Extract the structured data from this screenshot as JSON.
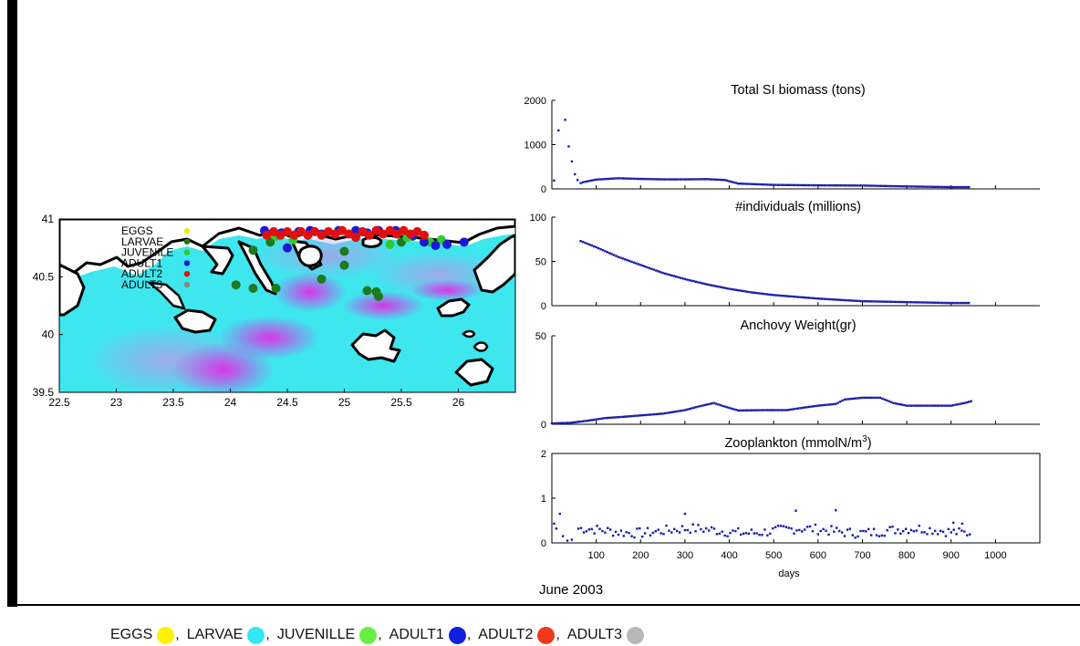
{
  "page": {
    "date_label": "June 2003"
  },
  "bottom_legend": {
    "items": [
      {
        "label": "EGGS",
        "color": "#fff200"
      },
      {
        "label": "LARVAE",
        "color": "#33e6f2"
      },
      {
        "label": "JUVENILLE",
        "color": "#66ee44"
      },
      {
        "label": "ADULT1",
        "color": "#1020dd"
      },
      {
        "label": "ADULT2",
        "color": "#f0381a"
      },
      {
        "label": "ADULT3",
        "color": "#b8b8b8"
      }
    ]
  },
  "chart_data": [
    {
      "type": "scatter",
      "panel": "map",
      "title": "",
      "xlim": [
        22.5,
        26.5
      ],
      "ylim": [
        39.5,
        41
      ],
      "xticks": [
        22.5,
        23,
        23.5,
        24,
        24.5,
        25,
        25.5,
        26
      ],
      "yticks": [
        39.5,
        40,
        40.5,
        41
      ],
      "legend": {
        "placement": "top-left",
        "entries": [
          {
            "label": "EGGS",
            "color": "#f5e800"
          },
          {
            "label": "LARVAE",
            "color": "#1d7a1d"
          },
          {
            "label": "JUVENILE",
            "color": "#2ecc2e"
          },
          {
            "label": "ADULT1",
            "color": "#1a1ad6"
          },
          {
            "label": "ADULT2",
            "color": "#e01010"
          },
          {
            "label": "ADULT3",
            "color": "#888888"
          }
        ]
      },
      "series": [
        {
          "name": "LARVAE",
          "color": "#1d7a1d",
          "points": [
            [
              24.05,
              40.43
            ],
            [
              24.2,
              40.4
            ],
            [
              24.4,
              40.4
            ],
            [
              24.2,
              40.73
            ],
            [
              24.35,
              40.8
            ],
            [
              24.8,
              40.48
            ],
            [
              25.0,
              40.72
            ],
            [
              25.0,
              40.6
            ],
            [
              25.2,
              40.38
            ],
            [
              25.28,
              40.37
            ],
            [
              25.3,
              40.33
            ],
            [
              25.5,
              40.8
            ],
            [
              25.6,
              40.85
            ]
          ]
        },
        {
          "name": "JUVENILE",
          "color": "#2ecc2e",
          "points": [
            [
              24.4,
              40.85
            ],
            [
              24.55,
              40.82
            ],
            [
              25.4,
              40.78
            ],
            [
              25.55,
              40.84
            ],
            [
              25.75,
              40.8
            ],
            [
              25.85,
              40.82
            ]
          ]
        },
        {
          "name": "ADULT1",
          "color": "#1a1ad6",
          "points": [
            [
              24.3,
              40.9
            ],
            [
              24.45,
              40.88
            ],
            [
              24.5,
              40.75
            ],
            [
              24.6,
              40.89
            ],
            [
              24.7,
              40.9
            ],
            [
              24.8,
              40.87
            ],
            [
              24.95,
              40.9
            ],
            [
              25.1,
              40.9
            ],
            [
              25.2,
              40.88
            ],
            [
              25.3,
              40.9
            ],
            [
              25.45,
              40.9
            ],
            [
              25.6,
              40.86
            ],
            [
              25.7,
              40.8
            ],
            [
              25.8,
              40.77
            ],
            [
              25.9,
              40.78
            ],
            [
              26.05,
              40.8
            ]
          ]
        },
        {
          "name": "ADULT2",
          "color": "#e01010",
          "points": [
            [
              24.32,
              40.86
            ],
            [
              24.38,
              40.89
            ],
            [
              24.44,
              40.86
            ],
            [
              24.5,
              40.89
            ],
            [
              24.56,
              40.86
            ],
            [
              24.62,
              40.89
            ],
            [
              24.68,
              40.86
            ],
            [
              24.74,
              40.89
            ],
            [
              24.8,
              40.86
            ],
            [
              24.86,
              40.89
            ],
            [
              24.92,
              40.87
            ],
            [
              24.98,
              40.9
            ],
            [
              25.04,
              40.87
            ],
            [
              25.1,
              40.84
            ],
            [
              25.16,
              40.89
            ],
            [
              25.22,
              40.86
            ],
            [
              25.28,
              40.9
            ],
            [
              25.34,
              40.87
            ],
            [
              25.4,
              40.9
            ],
            [
              25.46,
              40.87
            ],
            [
              25.52,
              40.9
            ],
            [
              25.58,
              40.87
            ],
            [
              25.64,
              40.89
            ],
            [
              25.7,
              40.86
            ]
          ]
        }
      ]
    },
    {
      "type": "scatter",
      "panel": "biomass",
      "title": "Total SI biomass (tons)",
      "xlim": [
        0,
        1100
      ],
      "ylim": [
        0,
        2000
      ],
      "yticks": [
        0,
        1000,
        2000
      ],
      "color": "#1a1aa8",
      "spikes": [
        [
          5,
          190
        ],
        [
          15,
          1320
        ],
        [
          30,
          1560
        ],
        [
          38,
          960
        ],
        [
          45,
          620
        ],
        [
          52,
          330
        ],
        [
          58,
          200
        ],
        [
          65,
          130
        ]
      ],
      "curve": [
        [
          70,
          150
        ],
        [
          100,
          210
        ],
        [
          150,
          240
        ],
        [
          200,
          225
        ],
        [
          250,
          215
        ],
        [
          300,
          215
        ],
        [
          350,
          220
        ],
        [
          390,
          200
        ],
        [
          420,
          120
        ],
        [
          500,
          90
        ],
        [
          600,
          80
        ],
        [
          700,
          75
        ],
        [
          800,
          55
        ],
        [
          900,
          40
        ],
        [
          940,
          40
        ]
      ]
    },
    {
      "type": "scatter",
      "panel": "individuals",
      "title": "#individuals (millions)",
      "xlim": [
        0,
        1100
      ],
      "ylim": [
        0,
        100
      ],
      "yticks": [
        0,
        50,
        100
      ],
      "color": "#1a1aa8",
      "curve": [
        [
          65,
          73
        ],
        [
          100,
          66
        ],
        [
          150,
          55
        ],
        [
          200,
          46
        ],
        [
          250,
          37
        ],
        [
          300,
          30
        ],
        [
          350,
          24
        ],
        [
          400,
          19
        ],
        [
          450,
          15
        ],
        [
          500,
          12
        ],
        [
          550,
          10
        ],
        [
          600,
          8
        ],
        [
          650,
          6.5
        ],
        [
          700,
          5
        ],
        [
          750,
          4.5
        ],
        [
          800,
          4
        ],
        [
          850,
          3.5
        ],
        [
          900,
          3
        ],
        [
          940,
          3
        ]
      ]
    },
    {
      "type": "scatter",
      "panel": "weight",
      "title": "Anchovy Weight(gr)",
      "xlim": [
        0,
        1100
      ],
      "ylim": [
        0,
        50
      ],
      "yticks": [
        0,
        50
      ],
      "color": "#1a1aa8",
      "curve": [
        [
          0,
          0.5
        ],
        [
          40,
          0.8
        ],
        [
          80,
          2
        ],
        [
          120,
          3.5
        ],
        [
          160,
          4.2
        ],
        [
          200,
          5
        ],
        [
          250,
          6
        ],
        [
          300,
          8
        ],
        [
          330,
          10
        ],
        [
          365,
          12
        ],
        [
          390,
          10
        ],
        [
          420,
          7.8
        ],
        [
          480,
          8
        ],
        [
          530,
          8
        ],
        [
          570,
          9.5
        ],
        [
          600,
          10.5
        ],
        [
          640,
          11.5
        ],
        [
          660,
          14
        ],
        [
          700,
          15
        ],
        [
          740,
          15
        ],
        [
          770,
          12
        ],
        [
          800,
          10.5
        ],
        [
          850,
          10.5
        ],
        [
          900,
          10.5
        ],
        [
          930,
          12
        ],
        [
          945,
          13
        ]
      ]
    },
    {
      "type": "scatter",
      "panel": "zooplankton",
      "title": "Zooplankton (mmolN/m",
      "title_sup": "3",
      "title_end": ")",
      "xlabel": "days",
      "xlim": [
        0,
        1100
      ],
      "ylim": [
        0,
        2
      ],
      "xticks": [
        100,
        200,
        300,
        400,
        500,
        600,
        700,
        800,
        900,
        1000
      ],
      "yticks": [
        0,
        1,
        2
      ],
      "color": "#1a1aa8",
      "baseline": 0.27,
      "outliers": [
        [
          5,
          0.43
        ],
        [
          10,
          0.32
        ],
        [
          18,
          0.65
        ],
        [
          25,
          0.15
        ],
        [
          35,
          0.05
        ],
        [
          45,
          0.07
        ],
        [
          300,
          0.65
        ],
        [
          550,
          0.72
        ],
        [
          640,
          0.73
        ],
        [
          905,
          0.45
        ],
        [
          925,
          0.43
        ]
      ]
    }
  ]
}
